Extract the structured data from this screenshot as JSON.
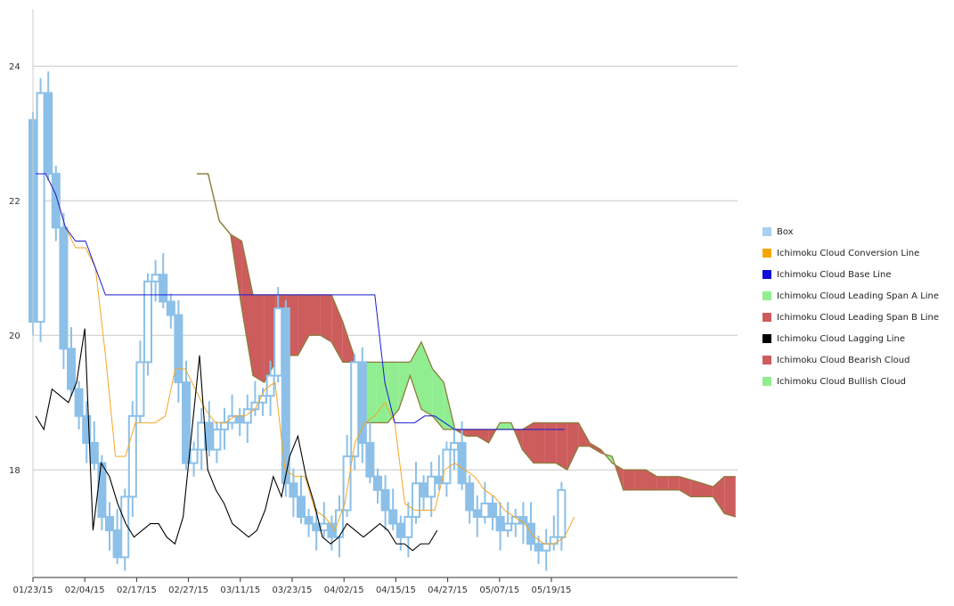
{
  "chart_data": {
    "type": "candlestick",
    "title": "",
    "xlabel": "",
    "ylabel": "",
    "ylim": [
      16.4,
      24.8
    ],
    "yticks": [
      18,
      20,
      22,
      24
    ],
    "xticks": [
      "01/23/15",
      "02/04/15",
      "02/17/15",
      "02/27/15",
      "03/11/15",
      "03/23/15",
      "04/02/15",
      "04/15/15",
      "04/27/15",
      "05/07/15",
      "05/19/15"
    ],
    "grid": "horizontal",
    "legend_position": "right",
    "colors": {
      "box": "#8cc0e8",
      "conversion": "#f5a623",
      "base": "#1a1ad6",
      "lagging": "#000000",
      "bearish": "#cd5c5c",
      "bullish": "#90ee90",
      "spans": "#8c7d3a"
    },
    "legend": [
      {
        "label": "Box",
        "color": "#a8d0f0",
        "series": "box"
      },
      {
        "label": "Ichimoku Cloud Conversion Line",
        "color": "#f5a500",
        "series": "conversion"
      },
      {
        "label": "Ichimoku Cloud Base Line",
        "color": "#1010d8",
        "series": "base"
      },
      {
        "label": "Ichimoku Cloud Leading Span A Line",
        "color": "#90ee90",
        "series": "span_a"
      },
      {
        "label": "Ichimoku Cloud Leading Span B Line",
        "color": "#cd5c5c",
        "series": "span_b"
      },
      {
        "label": "Ichimoku Cloud Lagging Line",
        "color": "#000000",
        "series": "lagging"
      },
      {
        "label": "Ichimoku Cloud Bearish Cloud",
        "color": "#cd5c5c",
        "series": "bearish"
      },
      {
        "label": "Ichimoku Cloud Bullish Cloud",
        "color": "#90ee90",
        "series": "bullish"
      }
    ],
    "candles_close": [
      20.2,
      23.6,
      22.4,
      21.6,
      19.8,
      19.2,
      18.8,
      18.4,
      18.1,
      17.3,
      17.1,
      16.7,
      17.6,
      18.8,
      19.6,
      20.8,
      20.9,
      20.5,
      20.3,
      19.3,
      18.1,
      18.3,
      18.7,
      18.3,
      18.6,
      18.7,
      18.8,
      18.7,
      18.9,
      19.0,
      19.1,
      19.4,
      20.4,
      17.8,
      17.6,
      17.3,
      17.2,
      17.1,
      17.2,
      17.0,
      17.4,
      18.2,
      19.6,
      18.4,
      17.9,
      17.7,
      17.4,
      17.2,
      17.0,
      17.3,
      17.8,
      17.6,
      17.9,
      17.8,
      18.3,
      18.4,
      17.8,
      17.4,
      17.3,
      17.5,
      17.3,
      17.1,
      17.2,
      17.3,
      17.2,
      16.9,
      16.8,
      16.9,
      17.0,
      17.7
    ],
    "conversion_line": [
      22.4,
      22.4,
      22.1,
      21.6,
      21.3,
      21.3,
      21.0,
      19.7,
      18.2,
      18.2,
      18.7,
      18.7,
      18.7,
      18.8,
      19.5,
      19.5,
      19.2,
      18.9,
      18.7,
      18.7,
      18.8,
      18.8,
      18.9,
      19.2,
      19.3,
      18.0,
      17.9,
      17.9,
      17.4,
      17.3,
      17.1,
      17.5,
      18.4,
      18.7,
      18.8,
      19.0,
      18.7,
      17.5,
      17.4,
      17.4,
      17.4,
      18.0,
      18.1,
      18.0,
      17.9,
      17.7,
      17.6,
      17.4,
      17.3,
      17.2,
      17.0,
      16.9,
      16.9,
      17.0,
      17.3
    ],
    "base_line": [
      22.4,
      22.4,
      22.1,
      21.6,
      21.4,
      21.4,
      21.0,
      20.6,
      20.6,
      20.6,
      20.6,
      20.6,
      20.6,
      20.6,
      20.6,
      20.6,
      20.6,
      20.6,
      20.6,
      20.6,
      20.6,
      20.6,
      20.6,
      20.6,
      20.6,
      20.6,
      20.6,
      20.6,
      20.6,
      20.6,
      20.6,
      20.6,
      20.6,
      20.6,
      20.6,
      19.3,
      18.7,
      18.7,
      18.7,
      18.8,
      18.8,
      18.7,
      18.6,
      18.6,
      18.6,
      18.6,
      18.6,
      18.6,
      18.6,
      18.6,
      18.6,
      18.6,
      18.6,
      18.6
    ],
    "lagging_line": [
      18.8,
      18.6,
      19.2,
      19.1,
      19.0,
      19.3,
      20.1,
      17.1,
      18.1,
      17.9,
      17.5,
      17.2,
      17.0,
      17.1,
      17.2,
      17.2,
      17.0,
      16.9,
      17.3,
      18.5,
      19.7,
      18.0,
      17.7,
      17.5,
      17.2,
      17.1,
      17.0,
      17.1,
      17.4,
      17.9,
      17.6,
      18.2,
      18.5,
      17.9,
      17.5,
      17.0,
      16.9,
      17.0,
      17.2,
      17.1,
      17.0,
      17.1,
      17.2,
      17.1,
      16.9,
      16.9,
      16.8,
      16.9,
      16.9,
      17.1
    ],
    "span_a": [
      22.4,
      22.4,
      21.7,
      21.5,
      20.4,
      19.4,
      19.3,
      19.6,
      19.7,
      19.7,
      20.0,
      20.0,
      19.9,
      19.6,
      19.6,
      19.6,
      19.6,
      19.6,
      19.6,
      19.6,
      19.9,
      19.5,
      19.3,
      18.6,
      18.5,
      18.5,
      18.4,
      18.7,
      18.7,
      18.3,
      18.1,
      18.1,
      18.1,
      18.0,
      18.35,
      18.35,
      18.25,
      18.2,
      17.7,
      17.7,
      17.7,
      17.7,
      17.7,
      17.7,
      17.6,
      17.6,
      17.6,
      17.35,
      17.3
    ],
    "span_b": [
      22.4,
      22.4,
      21.7,
      21.5,
      21.4,
      20.6,
      20.6,
      20.6,
      20.6,
      20.6,
      20.6,
      20.6,
      20.6,
      20.2,
      19.7,
      18.7,
      18.7,
      18.7,
      18.9,
      19.4,
      18.9,
      18.8,
      18.6,
      18.6,
      18.6,
      18.6,
      18.6,
      18.6,
      18.6,
      18.6,
      18.7,
      18.7,
      18.7,
      18.7,
      18.7,
      18.4,
      18.3,
      18.1,
      18.0,
      18.0,
      18.0,
      17.9,
      17.9,
      17.9,
      17.85,
      17.8,
      17.75,
      17.9,
      17.9
    ]
  }
}
